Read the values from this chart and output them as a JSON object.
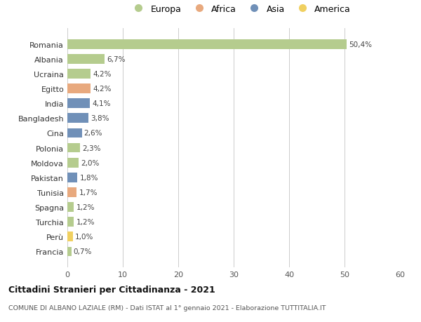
{
  "countries": [
    "Romania",
    "Albania",
    "Ucraina",
    "Egitto",
    "India",
    "Bangladesh",
    "Cina",
    "Polonia",
    "Moldova",
    "Pakistan",
    "Tunisia",
    "Spagna",
    "Turchia",
    "Perù",
    "Francia"
  ],
  "values": [
    50.4,
    6.7,
    4.2,
    4.2,
    4.1,
    3.8,
    2.6,
    2.3,
    2.0,
    1.8,
    1.7,
    1.2,
    1.2,
    1.0,
    0.7
  ],
  "labels": [
    "50,4%",
    "6,7%",
    "4,2%",
    "4,2%",
    "4,1%",
    "3,8%",
    "2,6%",
    "2,3%",
    "2,0%",
    "1,8%",
    "1,7%",
    "1,2%",
    "1,2%",
    "1,0%",
    "0,7%"
  ],
  "continents": [
    "Europa",
    "Europa",
    "Europa",
    "Africa",
    "Asia",
    "Asia",
    "Asia",
    "Europa",
    "Europa",
    "Asia",
    "Africa",
    "Europa",
    "Europa",
    "America",
    "Europa"
  ],
  "continent_colors": {
    "Europa": "#b5cc8e",
    "Africa": "#e8a97e",
    "Asia": "#7090b8",
    "America": "#f0d060"
  },
  "legend_items": [
    "Europa",
    "Africa",
    "Asia",
    "America"
  ],
  "legend_colors": [
    "#b5cc8e",
    "#e8a97e",
    "#7090b8",
    "#f0d060"
  ],
  "xlim": [
    0,
    60
  ],
  "xticks": [
    0,
    10,
    20,
    30,
    40,
    50,
    60
  ],
  "title": "Cittadini Stranieri per Cittadinanza - 2021",
  "subtitle": "COMUNE DI ALBANO LAZIALE (RM) - Dati ISTAT al 1° gennaio 2021 - Elaborazione TUTTITALIA.IT",
  "bg_color": "#ffffff",
  "grid_color": "#cccccc",
  "bar_height": 0.65,
  "bar_alpha": 1.0
}
